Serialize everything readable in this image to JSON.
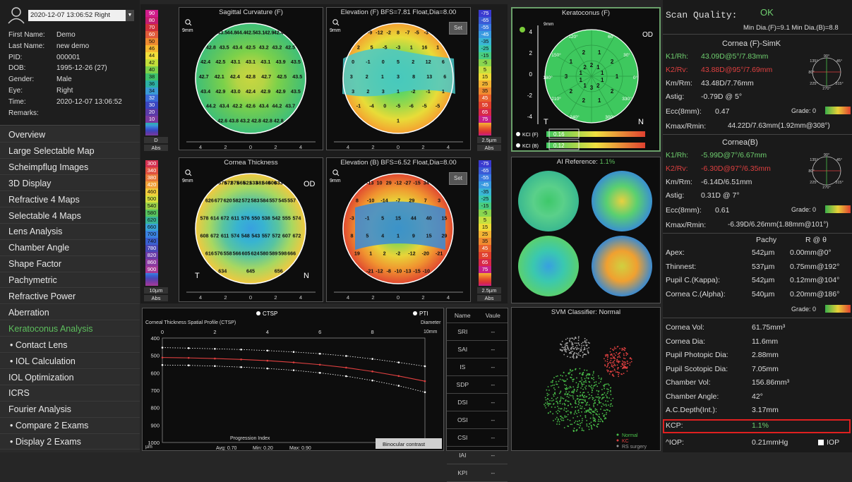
{
  "patient": {
    "datetime": "2020-12-07 13:06:52 Right",
    "fields": [
      {
        "label": "First Name:",
        "value": "Demo"
      },
      {
        "label": "Last Name:",
        "value": "new demo"
      },
      {
        "label": "PID:",
        "value": "000001"
      },
      {
        "label": "DOB:",
        "value": "1995-12-26  (27)"
      },
      {
        "label": "Gender:",
        "value": "Male"
      },
      {
        "label": "Eye:",
        "value": "Right"
      },
      {
        "label": "Time:",
        "value": "2020-12-07 13:06:52"
      },
      {
        "label": "Remarks:",
        "value": ""
      }
    ]
  },
  "nav": [
    "Overview",
    "Large Selectable Map",
    "Scheimpflug Images",
    "3D Display",
    "Refractive 4 Maps",
    "Selectable 4 Maps",
    "Lens Analysis",
    "Chamber Angle",
    "Shape Factor",
    "Pachymetric",
    "Refractive Power",
    "Aberration",
    "Keratoconus Analysis",
    "• Contact Lens",
    "• IOL Calculation",
    "IOL Optimization",
    "ICRS",
    "Fourier Analysis",
    "• Compare 2 Exams",
    "• Display 2 Exams"
  ],
  "colors": {
    "active_nav": "#5dbf5d",
    "k1": "#6fcf6f",
    "k2": "#e04040",
    "ok": "#5dbf5d",
    "kcp_box": "#e02020"
  },
  "scale1": {
    "values": [
      "90",
      "80",
      "70",
      "60",
      "50",
      "46",
      "44",
      "42",
      "40",
      "38",
      "36",
      "34",
      "32",
      "30",
      "20",
      "10"
    ],
    "d": "D",
    "abs": "Abs"
  },
  "scale2": {
    "values": [
      "300",
      "340",
      "380",
      "420",
      "460",
      "500",
      "540",
      "580",
      "620",
      "660",
      "700",
      "740",
      "780",
      "820",
      "860",
      "900"
    ],
    "d": "10µm",
    "abs": "Abs"
  },
  "scale3": {
    "values": [
      "-75",
      "-65",
      "-55",
      "-45",
      "-35",
      "-25",
      "-15",
      "-5",
      "5",
      "15",
      "25",
      "35",
      "45",
      "55",
      "65",
      "75"
    ],
    "d": "2.5µm",
    "abs": "Abs"
  },
  "scale4": {
    "values": [
      "-75",
      "-65",
      "-55",
      "-45",
      "-35",
      "-25",
      "-15",
      "-5",
      "5",
      "15",
      "25",
      "35",
      "45",
      "55",
      "65",
      "75"
    ],
    "d": "2.5µm",
    "abs": "Abs"
  },
  "maps": {
    "sag": {
      "title": "Sagittal Curvature (F)",
      "mm": "9mm",
      "axis": [
        "4",
        "2",
        "0",
        "2",
        "4"
      ],
      "values": [
        "43.5",
        "44.8",
        "44.4",
        "42.5",
        "43.1",
        "42.9",
        "42.4",
        "42.8",
        "43.5",
        "43.4",
        "42.5",
        "43.2",
        "43.2",
        "42.5",
        "42.4",
        "42.5",
        "43.1",
        "43.1",
        "43.1",
        "43.9",
        "43.5",
        "42.7",
        "42.1",
        "42.4",
        "42.8",
        "42.7",
        "42.5",
        "43.5",
        "43.4",
        "42.9",
        "43.0",
        "42.4",
        "42.9",
        "42.9",
        "43.5",
        "44.2",
        "43.4",
        "42.2",
        "42.6",
        "43.4",
        "44.2",
        "43.7",
        "42.6",
        "43.8",
        "43.2",
        "42.8",
        "42.8",
        "42.8"
      ]
    },
    "elevF": {
      "title": "Elevation (F) BFS=7.81 Float,Dia=8.00",
      "mm": "9mm",
      "set": "Set",
      "axis": [
        "4",
        "2",
        "0",
        "2",
        "4"
      ],
      "values": [
        "-9",
        "-12",
        "-2",
        "8",
        "-7",
        "-5",
        "-3",
        "2",
        "5",
        "-5",
        "-3",
        "1",
        "16",
        "1",
        "0",
        "-1",
        "0",
        "5",
        "2",
        "12",
        "6",
        "3",
        "2",
        "1",
        "3",
        "8",
        "13",
        "6",
        "3",
        "2",
        "3",
        "1",
        "-2",
        "-1",
        "1",
        "-1",
        "-4",
        "0",
        "-5",
        "-6",
        "-5",
        "-5",
        "1"
      ]
    },
    "thick": {
      "title": "Cornea Thickness",
      "mm": "9mm",
      "od": "OD",
      "t": "T",
      "n": "N",
      "axis": [
        "4",
        "2",
        "0",
        "2",
        "4"
      ],
      "values": [
        "675",
        "672",
        "675",
        "665",
        "621",
        "633",
        "681",
        "640",
        "600",
        "633",
        "626",
        "677",
        "620",
        "582",
        "572",
        "583",
        "584",
        "557",
        "545",
        "557",
        "578",
        "614",
        "672",
        "611",
        "576",
        "550",
        "538",
        "542",
        "555",
        "574",
        "608",
        "672",
        "611",
        "574",
        "548",
        "543",
        "557",
        "572",
        "607",
        "672",
        "616",
        "576",
        "558",
        "566",
        "605",
        "624",
        "580",
        "589",
        "598",
        "666",
        "634",
        "645",
        "656"
      ]
    },
    "elevB": {
      "title": "Elevation (B) BFS=6.52 Float,Dia=8.00",
      "mm": "9mm",
      "set": "Set",
      "axis": [
        "4",
        "2",
        "0",
        "2",
        "4"
      ],
      "values": [
        "-13",
        "10",
        "29",
        "-12",
        "-27",
        "-15",
        "34",
        "8",
        "-10",
        "-14",
        "-7",
        "29",
        "7",
        "3",
        "-3",
        "-1",
        "5",
        "15",
        "44",
        "40",
        "15",
        "8",
        "5",
        "4",
        "1",
        "9",
        "15",
        "29",
        "19",
        "1",
        "2",
        "-2",
        "-12",
        "-20",
        "-21",
        "-21",
        "-12",
        "-8",
        "-10",
        "-13",
        "-15",
        "-10"
      ]
    }
  },
  "kc": {
    "title": "Keratoconus (F)",
    "mm": "9mm",
    "od": "OD",
    "t": "T",
    "n": "N",
    "ticks": [
      "4",
      "2",
      "0",
      "-2",
      "-4"
    ],
    "values": [
      "1",
      "1",
      "2",
      "2",
      "1",
      "3",
      "2",
      "1",
      "2",
      "1",
      "3",
      "1",
      "1",
      "2",
      "2",
      "2",
      "1",
      "1",
      "2",
      "1"
    ],
    "angles": [
      "120°",
      "60°",
      "150°",
      "30°",
      "180°",
      "0°",
      "210°",
      "330°",
      "240°",
      "300°"
    ],
    "kci_f_label": "KCI (F)",
    "kci_f": "0.16",
    "kci_b_label": "KCI (B)",
    "kci_b": "0.12"
  },
  "ai": {
    "label": "AI Reference:",
    "value": "1.1%"
  },
  "svm": {
    "label": "SVM Classifier: Normal",
    "legend": [
      "Normal",
      "KC",
      "RS surgery"
    ]
  },
  "ctsp": {
    "legend1": "CTSP",
    "legend2": "PTI",
    "title": "Corneal Thickness Spatial Profile (CTSP)",
    "xlabel": "Diameter",
    "xunit": "10mm",
    "yunit": "µm",
    "xticks": [
      "0",
      "2",
      "4",
      "6",
      "8"
    ],
    "yticks": [
      "400",
      "500",
      "600",
      "700",
      "800",
      "900",
      "1000"
    ],
    "progression": "Progression Index",
    "avg": "Avg: 0.70",
    "min": "Min: 0.20",
    "max": "Max: 0.90",
    "binocular": "Binocular contrast"
  },
  "chart_data": {
    "type": "line",
    "title": "Corneal Thickness Spatial Profile (CTSP)",
    "xlabel": "Diameter",
    "ylabel": "µm",
    "xlim": [
      0,
      10
    ],
    "ylim": [
      400,
      1000
    ],
    "x": [
      0,
      1,
      2,
      3,
      4,
      5,
      6,
      7,
      8,
      9,
      10
    ],
    "series": [
      {
        "values": [
          455,
          458,
          462,
          466,
          472,
          480,
          490,
          503,
          520,
          540,
          562
        ]
      },
      {
        "values": [
          512,
          514,
          518,
          523,
          530,
          540,
          553,
          570,
          592,
          618,
          648
        ]
      },
      {
        "values": [
          555,
          557,
          561,
          567,
          575,
          585,
          600,
          619,
          644,
          674,
          711
        ]
      }
    ]
  },
  "indices": {
    "headers": [
      "Name",
      "Vaule"
    ],
    "rows": [
      [
        "SRI",
        "--"
      ],
      [
        "SAI",
        "--"
      ],
      [
        "IS",
        "--"
      ],
      [
        "SDP",
        "--"
      ],
      [
        "DSI",
        "--"
      ],
      [
        "OSI",
        "--"
      ],
      [
        "CSI",
        "--"
      ],
      [
        "IAI",
        "--"
      ],
      [
        "KPI",
        "--"
      ]
    ]
  },
  "right": {
    "scan_quality": "Scan Quality:",
    "ok": "OK",
    "mindia": "Min Dia.(F)=9.1  Min Dia.(B)=8.8",
    "front": {
      "title": "Cornea (F)-SimK",
      "k1l": "K1/Rh:",
      "k1": "43.09D@5°/7.83mm",
      "k2l": "K2/Rv:",
      "k2": "43.88D@95°/7.69mm",
      "kml": "Km/Rm:",
      "km": "43.48D/7.76mm",
      "astl": "Astig:",
      "ast": "-0.79D @ 5°",
      "eccl": "Ecc(8mm):",
      "ecc": "0.47",
      "grade": "Grade: 0",
      "kmaxl": "Kmax/Rmin:",
      "kmax": "44.22D/7.63mm(1.92mm@308°)"
    },
    "back": {
      "title": "Cornea(B)",
      "k1l": "K1/Rh:",
      "k1": "-5.99D@7°/6.67mm",
      "k2l": "K2/Rv:",
      "k2": "-6.30D@97°/6.35mm",
      "kml": "Km/Rm:",
      "km": "-6.14D/6.51mm",
      "astl": "Astig:",
      "ast": "0.31D @ 7°",
      "eccl": "Ecc(8mm):",
      "ecc": "0.61",
      "grade": "Grade: 0",
      "kmaxl": "Kmax/Rmin:",
      "kmax": "-6.39D/6.26mm(1.88mm@101°)"
    },
    "compass": [
      "90°",
      "45°",
      "135°",
      "180°",
      "225°",
      "315°",
      "270°"
    ],
    "grade_scale": [
      "1",
      "2",
      "3",
      "4"
    ],
    "pachy": {
      "h1": "Pachy",
      "h2": "R @ θ",
      "rows": [
        [
          "Apex:",
          "542µm",
          "0.00mm@0°"
        ],
        [
          "Thinnest:",
          "537µm",
          "0.75mm@192°"
        ],
        [
          "Pupil C.(Kappa):",
          "542µm",
          "0.12mm@104°"
        ],
        [
          "Cornea C.(Alpha):",
          "540µm",
          "0.20mm@186°"
        ]
      ],
      "grade": "Grade: 0"
    },
    "stats": [
      [
        "Cornea Vol:",
        "61.75mm³"
      ],
      [
        "Cornea Dia:",
        "11.6mm"
      ],
      [
        "Pupil Photopic Dia:",
        "2.88mm"
      ],
      [
        "Pupil Scotopic Dia:",
        "7.05mm"
      ],
      [
        "Chamber Vol:",
        "156.86mm³"
      ],
      [
        "Chamber Angle:",
        "42°"
      ],
      [
        "A.C.Depth(Int.):",
        "3.17mm"
      ]
    ],
    "kcp_label": "KCP:",
    "kcp": "1.1%",
    "iop_label": "^IOP:",
    "iop": "0.21mmHg",
    "iop_check": "IOP"
  }
}
